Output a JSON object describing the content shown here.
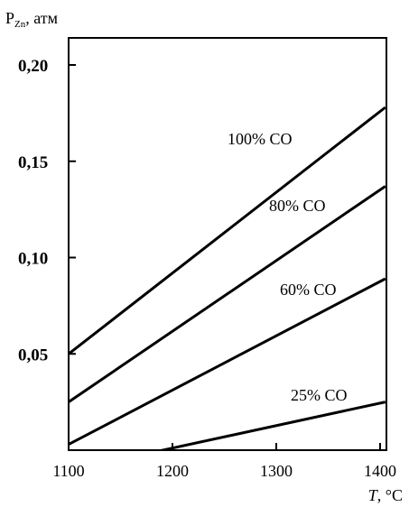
{
  "chart_data": {
    "type": "line",
    "ylabel_main": "P",
    "ylabel_sub": "Zn",
    "ylabel_unit": ", атм",
    "xlabel_symbol": "T",
    "xlabel_unit": ", °C",
    "xlim": [
      1100,
      1400
    ],
    "ylim": [
      0,
      0.2
    ],
    "x_ticks": [
      {
        "value": 1100,
        "label": "1100"
      },
      {
        "value": 1200,
        "label": "1200"
      },
      {
        "value": 1300,
        "label": "1300"
      },
      {
        "value": 1400,
        "label": "1400"
      }
    ],
    "y_ticks": [
      {
        "value": 0.05,
        "label": "0,05"
      },
      {
        "value": 0.1,
        "label": "0,10"
      },
      {
        "value": 0.15,
        "label": "0,15"
      },
      {
        "value": 0.2,
        "label": "0,20"
      }
    ],
    "grid": false,
    "series": [
      {
        "name": "100% CO",
        "x": [
          1100,
          1405
        ],
        "y": [
          0.05,
          0.178
        ]
      },
      {
        "name": "80% CO",
        "x": [
          1100,
          1405
        ],
        "y": [
          0.025,
          0.137
        ]
      },
      {
        "name": "60% CO",
        "x": [
          1100,
          1405
        ],
        "y": [
          0.003,
          0.089
        ]
      },
      {
        "name": "25% CO",
        "x": [
          1165,
          1405
        ],
        "y": [
          -0.003,
          0.025
        ]
      }
    ]
  }
}
